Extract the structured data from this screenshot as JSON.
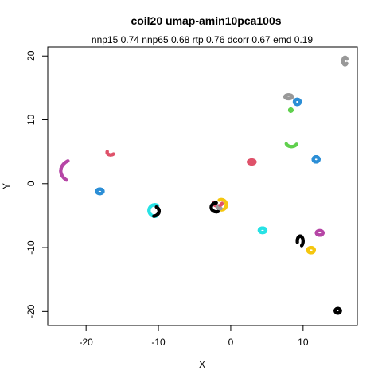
{
  "chart_data": {
    "type": "scatter",
    "title": "coil20 umap-amin10pca100s",
    "subtitle": "nnp15 0.74 nnp65 0.68 rtp 0.76 dcorr 0.67 emd 0.19",
    "xlabel": "X",
    "ylabel": "Y",
    "xlim": [
      -25.3,
      17.5
    ],
    "ylim": [
      -22.2,
      21.4
    ],
    "xticks": [
      -20,
      -10,
      0,
      10
    ],
    "yticks": [
      -20,
      -10,
      0,
      10,
      20
    ],
    "grid": false,
    "legend": "none",
    "clusters": [
      {
        "color": "#999999",
        "shape": "arc",
        "cx": 15.8,
        "cy": 19.2,
        "rx": 0.3,
        "ry": 0.6,
        "a0": 30,
        "a1": 330
      },
      {
        "color": "#999999",
        "shape": "ring",
        "cx": 8.0,
        "cy": 13.6,
        "rx": 0.5,
        "ry": 0.3
      },
      {
        "color": "#2D8FD6",
        "shape": "ring",
        "cx": 9.2,
        "cy": 12.8,
        "rx": 0.4,
        "ry": 0.4
      },
      {
        "color": "#61D04F",
        "shape": "arc",
        "cx": 8.3,
        "cy": 11.5,
        "rx": 0.15,
        "ry": 0.15,
        "a0": 0,
        "a1": 360
      },
      {
        "color": "#DF536B",
        "shape": "arc",
        "cx": -16.6,
        "cy": 4.9,
        "rx": 0.5,
        "ry": 0.4,
        "a0": 160,
        "a1": 330
      },
      {
        "color": "#2D8FD6",
        "shape": "ring",
        "cx": 11.8,
        "cy": 3.8,
        "rx": 0.4,
        "ry": 0.4
      },
      {
        "color": "#DF536B",
        "shape": "ring",
        "cx": 2.9,
        "cy": 3.4,
        "rx": 0.45,
        "ry": 0.3
      },
      {
        "color": "#61D04F",
        "shape": "arc",
        "cx": 8.4,
        "cy": 6.4,
        "rx": 0.75,
        "ry": 0.6,
        "a0": 195,
        "a1": 345
      },
      {
        "color": "#B646A6",
        "shape": "arc",
        "cx": -21.5,
        "cy": 2.0,
        "rx": 2.0,
        "ry": 1.8,
        "a0": 120,
        "a1": 235
      },
      {
        "color": "#2D8FD6",
        "shape": "ring",
        "cx": -18.1,
        "cy": -1.2,
        "rx": 0.45,
        "ry": 0.35
      },
      {
        "color": "#28E2E5",
        "shape": "arc",
        "cx": -10.5,
        "cy": -4.2,
        "rx": 0.8,
        "ry": 0.9,
        "a0": 60,
        "a1": 290
      },
      {
        "color": "#000000",
        "shape": "arc",
        "cx": -10.8,
        "cy": -4.3,
        "rx": 0.9,
        "ry": 0.8,
        "a0": -80,
        "a1": 60
      },
      {
        "color": "#DF536B",
        "shape": "arc",
        "cx": -1.8,
        "cy": -3.0,
        "rx": 0.6,
        "ry": 0.5,
        "a0": 180,
        "a1": 360
      },
      {
        "color": "#000000",
        "shape": "arc",
        "cx": -2.0,
        "cy": -3.7,
        "rx": 0.7,
        "ry": 0.7,
        "a0": 90,
        "a1": 300
      },
      {
        "color": "#F5C710",
        "shape": "arc",
        "cx": -1.3,
        "cy": -3.3,
        "rx": 0.7,
        "ry": 0.8,
        "a0": -90,
        "a1": 120
      },
      {
        "color": "#9E9E9E",
        "shape": "arc",
        "cx": -1.5,
        "cy": -3.5,
        "rx": 0.4,
        "ry": 0.4,
        "a0": 200,
        "a1": 300
      },
      {
        "color": "#28E2E5",
        "shape": "ring",
        "cx": 4.4,
        "cy": -7.3,
        "rx": 0.45,
        "ry": 0.35
      },
      {
        "color": "#000000",
        "shape": "arc",
        "cx": 9.6,
        "cy": -9.0,
        "rx": 0.4,
        "ry": 0.8,
        "a0": -60,
        "a1": 200
      },
      {
        "color": "#B646A6",
        "shape": "ring",
        "cx": 12.3,
        "cy": -7.7,
        "rx": 0.45,
        "ry": 0.35
      },
      {
        "color": "#F5C710",
        "shape": "ring",
        "cx": 11.1,
        "cy": -10.4,
        "rx": 0.45,
        "ry": 0.4
      },
      {
        "color": "#000000",
        "shape": "ring",
        "cx": 14.8,
        "cy": -19.9,
        "rx": 0.35,
        "ry": 0.35
      }
    ]
  }
}
